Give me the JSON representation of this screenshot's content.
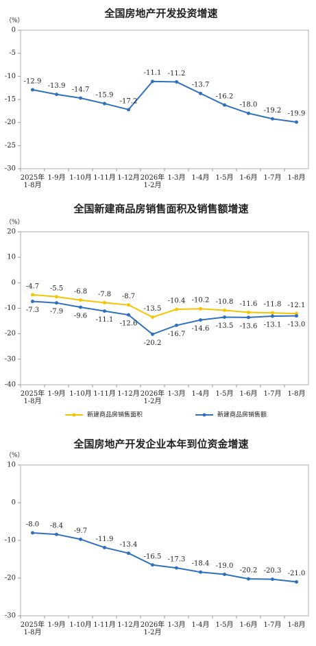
{
  "chart_data": [
    {
      "type": "line",
      "title": "全国房地产开发投资增速",
      "y_unit": "（%）",
      "categories": [
        "2025年\n1-8月",
        "1-9月",
        "1-10月",
        "1-11月",
        "1-12月",
        "2026年\n1-2月",
        "1-3月",
        "1-4月",
        "1-5月",
        "1-6月",
        "1-7月",
        "1-8月"
      ],
      "values": [
        -12.9,
        -13.9,
        -14.7,
        -15.9,
        -17.2,
        -11.1,
        -11.2,
        -13.7,
        -16.2,
        -18.0,
        -19.2,
        -19.9
      ],
      "value_labels": [
        "-12.9",
        "-13.9",
        "-14.7",
        "-15.9",
        "-17.2",
        "-11.1",
        "-11.2",
        "-13.7",
        "-16.2",
        "-18.0",
        "-19.2",
        "-19.9"
      ],
      "color": "#2e6fc0",
      "ylim": [
        -30,
        0
      ],
      "yticks": [
        0,
        -5,
        -10,
        -15,
        -20,
        -25,
        -30
      ]
    },
    {
      "type": "line",
      "title": "全国新建商品房销售面积及销售额增速",
      "y_unit": "（%）",
      "categories": [
        "2025年\n1-8月",
        "1-9月",
        "1-10月",
        "1-11月",
        "1-12月",
        "2026年\n1-2月",
        "1-3月",
        "1-4月",
        "1-5月",
        "1-6月",
        "1-7月",
        "1-8月"
      ],
      "series": [
        {
          "name": "新建商品房销售面积",
          "color": "#f5c400",
          "values": [
            -4.7,
            -5.5,
            -6.8,
            -7.8,
            -8.7,
            -13.5,
            -10.4,
            -10.2,
            -10.8,
            -11.6,
            -11.8,
            -12.1
          ],
          "value_labels": [
            "-4.7",
            "-5.5",
            "-6.8",
            "-7.8",
            "-8.7",
            "-13.5",
            "-10.4",
            "-10.2",
            "-10.8",
            "-11.6",
            "-11.8",
            "-12.1"
          ]
        },
        {
          "name": "新建商品房销售额",
          "color": "#2e6fc0",
          "values": [
            -7.3,
            -7.9,
            -9.6,
            -11.1,
            -12.6,
            -20.2,
            -16.7,
            -14.6,
            -13.5,
            -13.6,
            -13.1,
            -13.0
          ],
          "value_labels": [
            "-7.3",
            "-7.9",
            "-9.6",
            "-11.1",
            "-12.6",
            "-20.2",
            "-16.7",
            "-14.6",
            "-13.5",
            "-13.6",
            "-13.1",
            "-13.0"
          ]
        }
      ],
      "legend": "bottom",
      "ylim": [
        -40,
        20
      ],
      "yticks": [
        20,
        10,
        0,
        -10,
        -20,
        -30,
        -40
      ]
    },
    {
      "type": "line",
      "title": "全国房地产开发企业本年到位资金增速",
      "y_unit": "（%）",
      "categories": [
        "2025年\n1-8月",
        "1-9月",
        "1-10月",
        "1-11月",
        "1-12月",
        "2026年\n1-2月",
        "1-3月",
        "1-4月",
        "1-5月",
        "1-6月",
        "1-7月",
        "1-8月"
      ],
      "values": [
        -8.0,
        -8.4,
        -9.7,
        -11.9,
        -13.4,
        -16.5,
        -17.3,
        -18.4,
        -19.0,
        -20.2,
        -20.3,
        -21.0
      ],
      "value_labels": [
        "-8.0",
        "-8.4",
        "-9.7",
        "-11.9",
        "-13.4",
        "-16.5",
        "-17.3",
        "-18.4",
        "-19.0",
        "-20.2",
        "-20.3",
        "-21.0"
      ],
      "color": "#2e6fc0",
      "ylim": [
        -30,
        10
      ],
      "yticks": [
        10,
        0,
        -10,
        -20,
        -30
      ]
    }
  ]
}
